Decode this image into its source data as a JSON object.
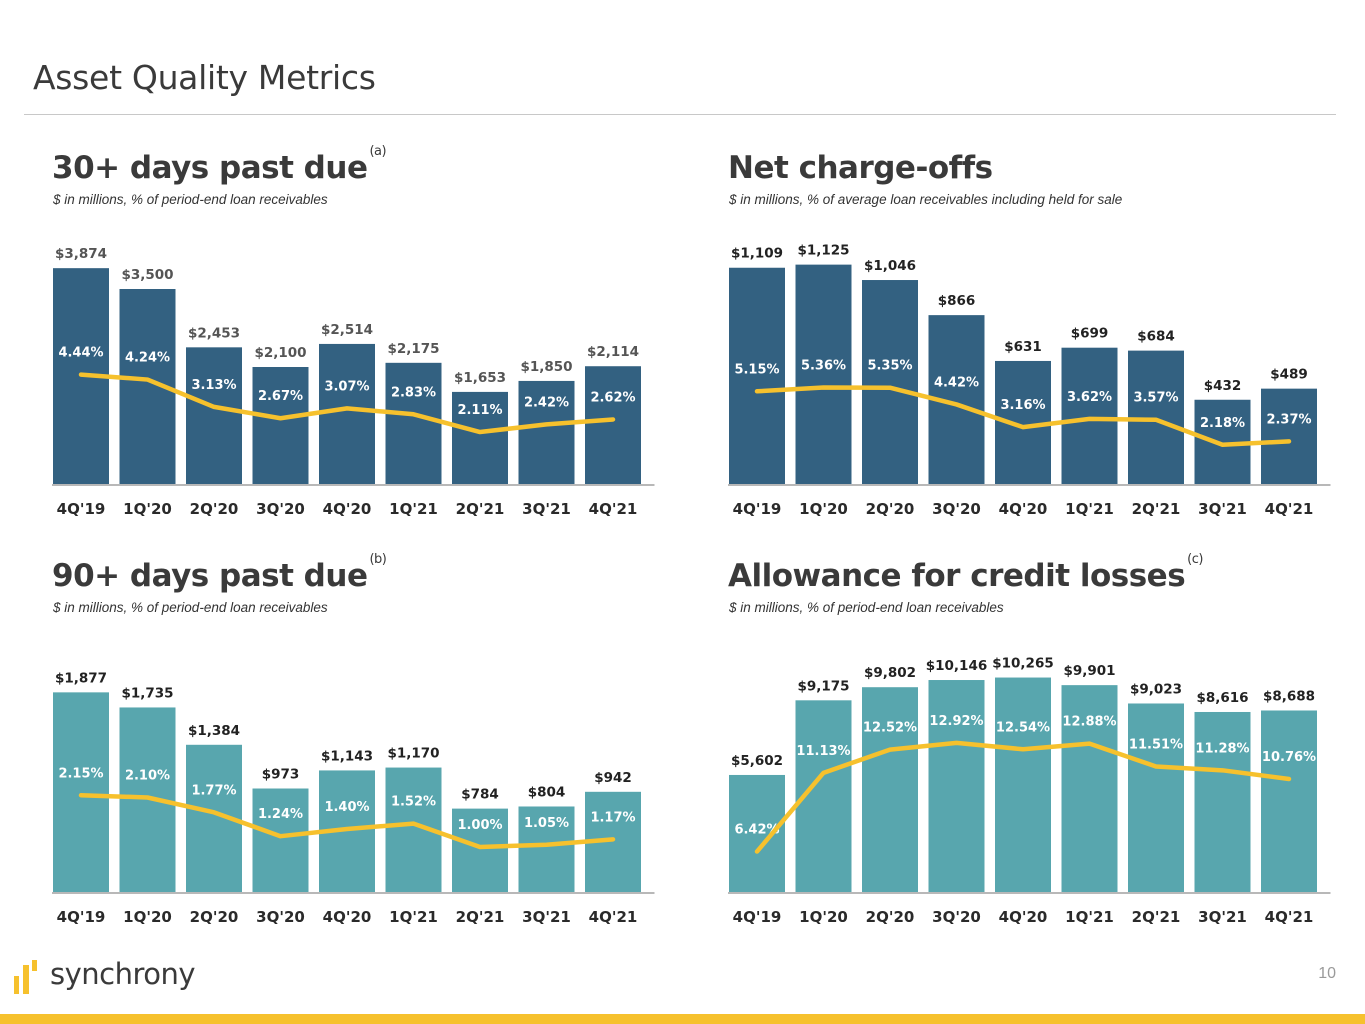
{
  "page": {
    "title": "Asset Quality Metrics",
    "page_number": "10",
    "logo_text": "synchrony",
    "colors": {
      "accent_yellow": "#f6c12d",
      "navy_bar": "#336181",
      "teal_bar": "#58a6ae",
      "text": "#3a3a3a"
    }
  },
  "chart_data": [
    {
      "id": "dpd30",
      "type": "bar",
      "title": "30+ days past due",
      "footnote": "(a)",
      "subtitle": "$ in millions, % of period-end loan receivables",
      "categories": [
        "4Q'19",
        "1Q'20",
        "2Q'20",
        "3Q'20",
        "4Q'20",
        "1Q'21",
        "2Q'21",
        "3Q'21",
        "4Q'21"
      ],
      "series": [
        {
          "name": "$ in millions",
          "type": "bar",
          "color": "#336181",
          "values": [
            3874,
            3500,
            2453,
            2100,
            2514,
            2175,
            1653,
            1850,
            2114
          ],
          "labels": [
            "$3,874",
            "$3,500",
            "$2,453",
            "$2,100",
            "$2,514",
            "$2,175",
            "$1,653",
            "$1,850",
            "$2,114"
          ]
        },
        {
          "name": "% of period-end loan receivables",
          "type": "line",
          "color": "#f6c12d",
          "values": [
            4.44,
            4.24,
            3.13,
            2.67,
            3.07,
            2.83,
            2.11,
            2.42,
            2.62
          ],
          "labels": [
            "4.44%",
            "4.24%",
            "3.13%",
            "2.67%",
            "3.07%",
            "2.83%",
            "2.11%",
            "2.42%",
            "2.62%"
          ]
        }
      ],
      "xlabel": "",
      "ylabel": "",
      "grid": false
    },
    {
      "id": "nco",
      "type": "bar",
      "title": "Net charge-offs",
      "footnote": "",
      "subtitle": "$ in millions, % of average loan receivables including held for sale",
      "categories": [
        "4Q'19",
        "1Q'20",
        "2Q'20",
        "3Q'20",
        "4Q'20",
        "1Q'21",
        "2Q'21",
        "3Q'21",
        "4Q'21"
      ],
      "series": [
        {
          "name": "$ in millions",
          "type": "bar",
          "color": "#336181",
          "values": [
            1109,
            1125,
            1046,
            866,
            631,
            699,
            684,
            432,
            489
          ],
          "labels": [
            "$1,109",
            "$1,125",
            "$1,046",
            "$866",
            "$631",
            "$699",
            "$684",
            "$432",
            "$489"
          ]
        },
        {
          "name": "% of average loan receivables including held for sale",
          "type": "line",
          "color": "#f6c12d",
          "values": [
            5.15,
            5.36,
            5.35,
            4.42,
            3.16,
            3.62,
            3.57,
            2.18,
            2.37
          ],
          "labels": [
            "5.15%",
            "5.36%",
            "5.35%",
            "4.42%",
            "3.16%",
            "3.62%",
            "3.57%",
            "2.18%",
            "2.37%"
          ]
        }
      ],
      "xlabel": "",
      "ylabel": "",
      "grid": false
    },
    {
      "id": "dpd90",
      "type": "bar",
      "title": "90+ days past due",
      "footnote": "(b)",
      "subtitle": "$ in millions, % of period-end loan receivables",
      "categories": [
        "4Q'19",
        "1Q'20",
        "2Q'20",
        "3Q'20",
        "4Q'20",
        "1Q'21",
        "2Q'21",
        "3Q'21",
        "4Q'21"
      ],
      "series": [
        {
          "name": "$ in millions",
          "type": "bar",
          "color": "#58a6ae",
          "values": [
            1877,
            1735,
            1384,
            973,
            1143,
            1170,
            784,
            804,
            942
          ],
          "labels": [
            "$1,877",
            "$1,735",
            "$1,384",
            "$973",
            "$1,143",
            "$1,170",
            "$784",
            "$804",
            "$942"
          ]
        },
        {
          "name": "% of period-end loan receivables",
          "type": "line",
          "color": "#f6c12d",
          "values": [
            2.15,
            2.1,
            1.77,
            1.24,
            1.4,
            1.52,
            1.0,
            1.05,
            1.17
          ],
          "labels": [
            "2.15%",
            "2.10%",
            "1.77%",
            "1.24%",
            "1.40%",
            "1.52%",
            "1.00%",
            "1.05%",
            "1.17%"
          ]
        }
      ],
      "xlabel": "",
      "ylabel": "",
      "grid": false
    },
    {
      "id": "acl",
      "type": "bar",
      "title": "Allowance for credit losses",
      "footnote": "(c)",
      "subtitle": "$ in millions, % of period-end loan receivables",
      "categories": [
        "4Q'19",
        "1Q'20",
        "2Q'20",
        "3Q'20",
        "4Q'20",
        "1Q'21",
        "2Q'21",
        "3Q'21",
        "4Q'21"
      ],
      "series": [
        {
          "name": "$ in millions",
          "type": "bar",
          "color": "#58a6ae",
          "values": [
            5602,
            9175,
            9802,
            10146,
            10265,
            9901,
            9023,
            8616,
            8688
          ],
          "labels": [
            "$5,602",
            "$9,175",
            "$9,802",
            "$10,146",
            "$10,265",
            "$9,901",
            "$9,023",
            "$8,616",
            "$8,688"
          ]
        },
        {
          "name": "% of period-end loan receivables",
          "type": "line",
          "color": "#f6c12d",
          "values": [
            6.42,
            11.13,
            12.52,
            12.92,
            12.54,
            12.88,
            11.51,
            11.28,
            10.76
          ],
          "labels": [
            "6.42%",
            "11.13%",
            "12.52%",
            "12.92%",
            "12.54%",
            "12.88%",
            "11.51%",
            "11.28%",
            "10.76%"
          ]
        }
      ],
      "xlabel": "",
      "ylabel": "",
      "grid": false
    }
  ]
}
